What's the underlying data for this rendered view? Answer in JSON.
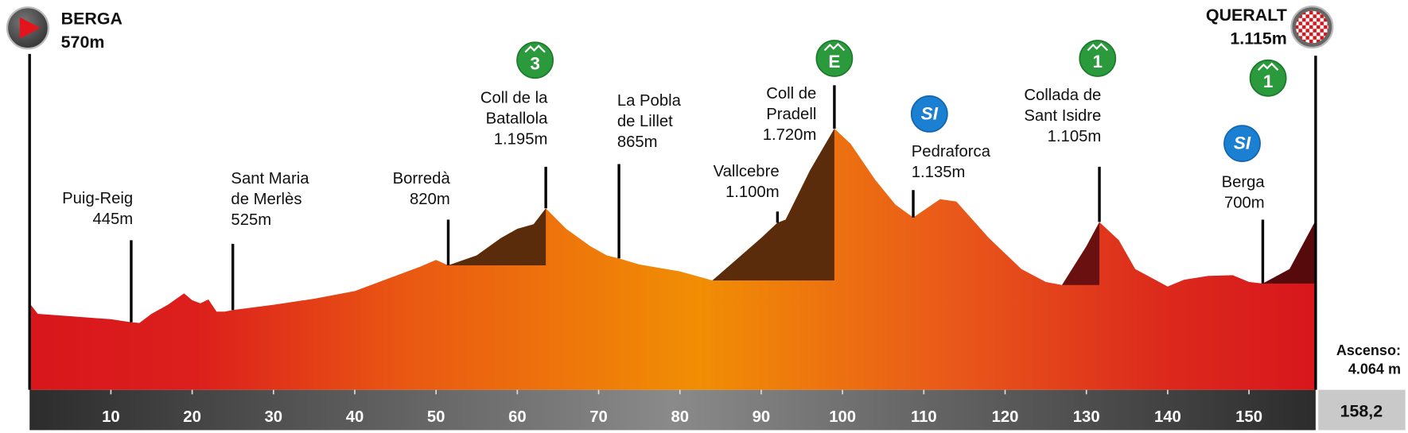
{
  "chart_data": {
    "type": "elevation-profile",
    "xlim": [
      0,
      158.2
    ],
    "ylim": [
      0,
      2200
    ],
    "xticks": [
      10,
      20,
      30,
      40,
      50,
      60,
      70,
      80,
      90,
      100,
      110,
      120,
      130,
      140,
      150
    ],
    "total_distance": {
      "value": 158.2,
      "label": "158,2"
    },
    "total_ascent": {
      "title": "Ascenso:",
      "text": "4.064 m"
    },
    "profile": {
      "km": [
        0,
        1,
        5,
        10,
        12.5,
        13.5,
        15,
        17,
        19,
        20,
        21,
        22,
        23,
        24,
        25,
        30,
        35,
        40,
        43,
        45,
        48,
        50,
        51.5,
        55,
        58,
        60,
        62,
        63.5,
        66,
        69,
        71,
        72.5,
        75,
        80,
        84,
        90,
        92,
        93,
        96,
        99,
        101,
        104,
        106.5,
        108.7,
        112,
        114,
        118,
        122,
        125,
        127,
        130,
        131.6,
        134,
        136,
        140,
        142,
        145,
        148,
        150,
        151.7,
        155,
        158.2
      ],
      "elevation": [
        570,
        500,
        485,
        465,
        445,
        440,
        500,
        560,
        635,
        590,
        570,
        595,
        515,
        515,
        525,
        560,
        600,
        650,
        710,
        750,
        810,
        855,
        820,
        885,
        1000,
        1060,
        1090,
        1195,
        1060,
        945,
        885,
        865,
        825,
        780,
        720,
        1000,
        1100,
        1120,
        1445,
        1720,
        1620,
        1385,
        1220,
        1135,
        1255,
        1240,
        1000,
        795,
        710,
        690,
        945,
        1105,
        985,
        795,
        680,
        725,
        750,
        755,
        710,
        700,
        795,
        1115
      ]
    },
    "climbs": [
      {
        "start_km": 51.5,
        "end_km": 63.5,
        "color": "#5a2c0b"
      },
      {
        "start_km": 84,
        "end_km": 99,
        "color": "#5a2c0b"
      },
      {
        "start_km": 127,
        "end_km": 131.6,
        "color": "#6a1010"
      },
      {
        "start_km": 151.7,
        "end_km": 158.2,
        "color": "#560a0c"
      }
    ],
    "waypoints": [
      {
        "name": [
          "BERGA"
        ],
        "km": 0,
        "elevation": 570,
        "elevation_label": "570m",
        "role": "start"
      },
      {
        "name": [
          "Puig-Reig"
        ],
        "km": 12.5,
        "elevation": 445,
        "elevation_label": "445m"
      },
      {
        "name": [
          "Sant Maria",
          "de Merlès"
        ],
        "km": 25,
        "elevation": 525,
        "elevation_label": "525m"
      },
      {
        "name": [
          "Borredà"
        ],
        "km": 51.5,
        "elevation": 820,
        "elevation_label": "820m"
      },
      {
        "name": [
          "Coll de la",
          "Batallola"
        ],
        "km": 63.5,
        "elevation": 1195,
        "elevation_label": "1.195m",
        "icon": {
          "kind": "mountain",
          "label": "3"
        }
      },
      {
        "name": [
          "La Pobla",
          "de Lillet"
        ],
        "km": 72.5,
        "elevation": 865,
        "elevation_label": "865m"
      },
      {
        "name": [
          "Vallcebre"
        ],
        "km": 92,
        "elevation": 1100,
        "elevation_label": "1.100m"
      },
      {
        "name": [
          "Coll de",
          "Pradell"
        ],
        "km": 99,
        "elevation": 1720,
        "elevation_label": "1.720m",
        "icon": {
          "kind": "mountain",
          "label": "E"
        }
      },
      {
        "name": [
          "Pedraforca"
        ],
        "km": 108.7,
        "elevation": 1135,
        "elevation_label": "1.135m",
        "icon": {
          "kind": "sprint",
          "label": "SI"
        }
      },
      {
        "name": [
          "Collada de",
          "Sant Isidre"
        ],
        "km": 131.6,
        "elevation": 1105,
        "elevation_label": "1.105m",
        "icon": {
          "kind": "mountain",
          "label": "1"
        }
      },
      {
        "name": [
          "Berga"
        ],
        "km": 151.7,
        "elevation": 700,
        "elevation_label": "700m",
        "icon": {
          "kind": "sprint",
          "label": "SI"
        }
      },
      {
        "name": [
          "QUERALT"
        ],
        "km": 158.2,
        "elevation": 1115,
        "elevation_label": "1.115m",
        "role": "finish",
        "icon": {
          "kind": "mountain",
          "label": "1"
        }
      }
    ]
  }
}
